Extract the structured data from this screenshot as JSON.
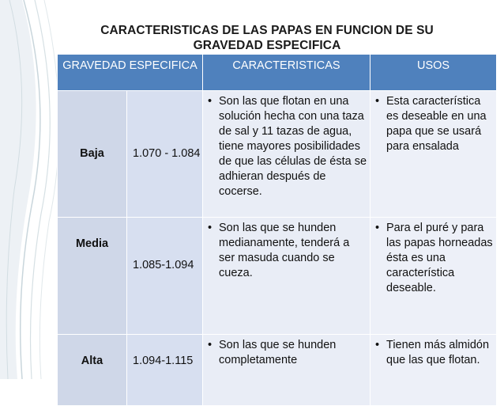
{
  "title": {
    "line1": "CARACTERISTICAS DE LAS PAPAS EN FUNCION DE SU",
    "line2": "GRAVEDAD ESPECIFICA"
  },
  "table": {
    "headers": {
      "gravedad": "GRAVEDAD ESPECIFICA",
      "caracteristicas": "CARACTERISTICAS",
      "usos": "USOS"
    },
    "rows": [
      {
        "name": "Baja",
        "value": "1.070 - 1.084",
        "caracteristicas": "Son las que flotan en una solución hecha con una taza de sal y 11 tazas de agua, tiene mayores posibilidades de que las células de ésta se adhieran después de cocerse.",
        "usos": "Esta característica es deseable en una papa que se usará para ensalada"
      },
      {
        "name": "Media",
        "value": "1.085-1.094",
        "caracteristicas": "Son las que se hunden medianamente, tenderá a ser masuda cuando se cueza.",
        "usos": "Para el puré y para las papas horneadas ésta es una característica deseable."
      },
      {
        "name": "Alta",
        "value": "1.094-1.115",
        "caracteristicas": "Son las que se hunden completamente",
        "usos": "Tienen más almidón que las que flotan."
      }
    ]
  },
  "bullet_symbol": "•",
  "colors": {
    "header_bg": "#4f81bd",
    "name_cell_bg": "#cfd7e8",
    "text_cell_bg": "#e9edf6"
  }
}
